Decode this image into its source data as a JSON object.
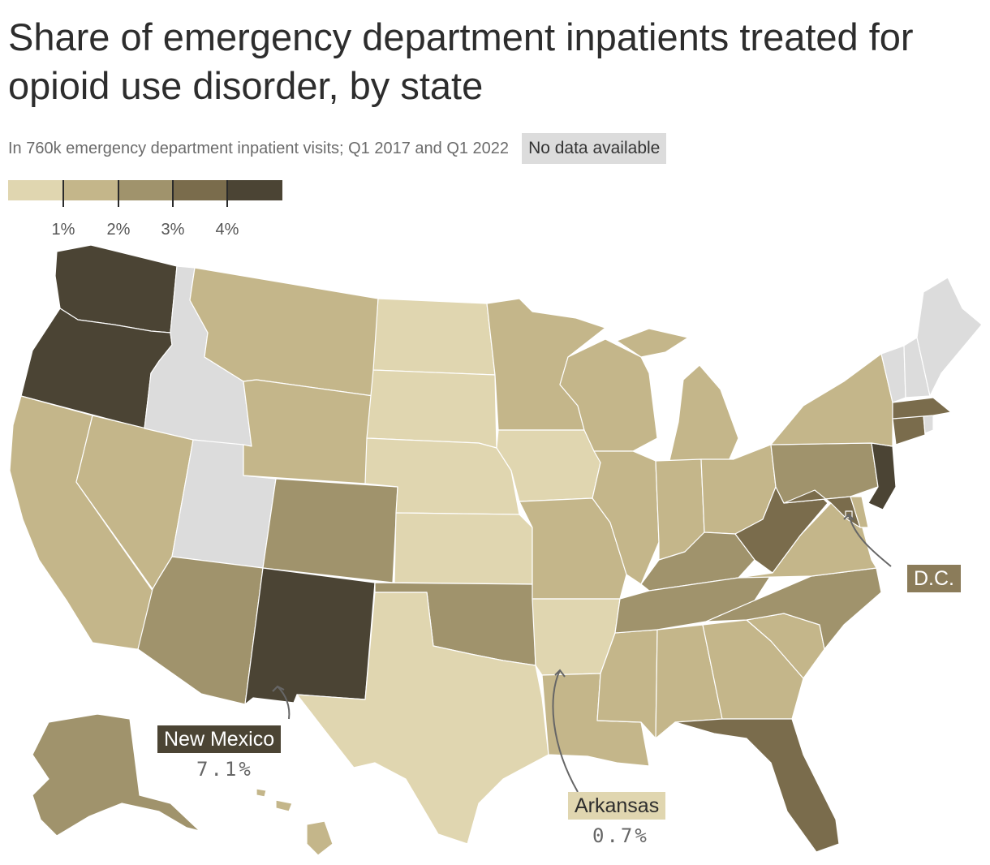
{
  "title": "Share of emergency department inpatients treated for opioid use disorder, by state",
  "subtitle": "In 760k emergency department inpatient visits; Q1 2017 and Q1 2022",
  "legend": {
    "no_data_label": "No data available",
    "no_data_color": "#dcdcdc",
    "bins": [
      {
        "color": "#e0d6b0"
      },
      {
        "color": "#c4b68a"
      },
      {
        "color": "#a0936c"
      },
      {
        "color": "#7a6c4c"
      },
      {
        "color": "#4b4434"
      }
    ],
    "ticks": [
      "1%",
      "2%",
      "3%",
      "4%"
    ]
  },
  "callouts": {
    "new_mexico": {
      "label": "New Mexico",
      "value": "7.1%"
    },
    "arkansas": {
      "label": "Arkansas",
      "value": "0.7%"
    },
    "dc": {
      "label": "D.C."
    }
  },
  "states": {
    "WA": "bin5",
    "OR": "bin5",
    "CA": "bin2",
    "NV": "bin2",
    "ID": "nodata",
    "UT": "nodata",
    "AZ": "bin3",
    "MT": "bin2",
    "WY": "bin2",
    "CO": "bin3",
    "NM": "bin5",
    "ND": "bin1",
    "SD": "bin1",
    "NE": "bin1",
    "KS": "bin1",
    "OK": "bin3",
    "TX": "bin1",
    "MN": "bin2",
    "IA": "bin1",
    "MO": "bin2",
    "AR": "bin1",
    "LA": "bin2",
    "WI": "bin2",
    "IL": "bin2",
    "MS": "bin2",
    "MI": "bin2",
    "IN": "bin2",
    "KY": "bin3",
    "TN": "bin3",
    "AL": "bin2",
    "OH": "bin2",
    "GA": "bin2",
    "FL": "bin4",
    "SC": "bin2",
    "NC": "bin3",
    "VA": "bin2",
    "WV": "bin4",
    "PA": "bin3",
    "NY": "bin2",
    "MD": "bin4",
    "DE": "bin2",
    "NJ": "bin5",
    "CT": "bin4",
    "MA": "bin4",
    "RI": "nodata",
    "VT": "nodata",
    "NH": "nodata",
    "ME": "nodata",
    "AK": "bin3",
    "HI": "bin2",
    "DC": "bin4"
  }
}
